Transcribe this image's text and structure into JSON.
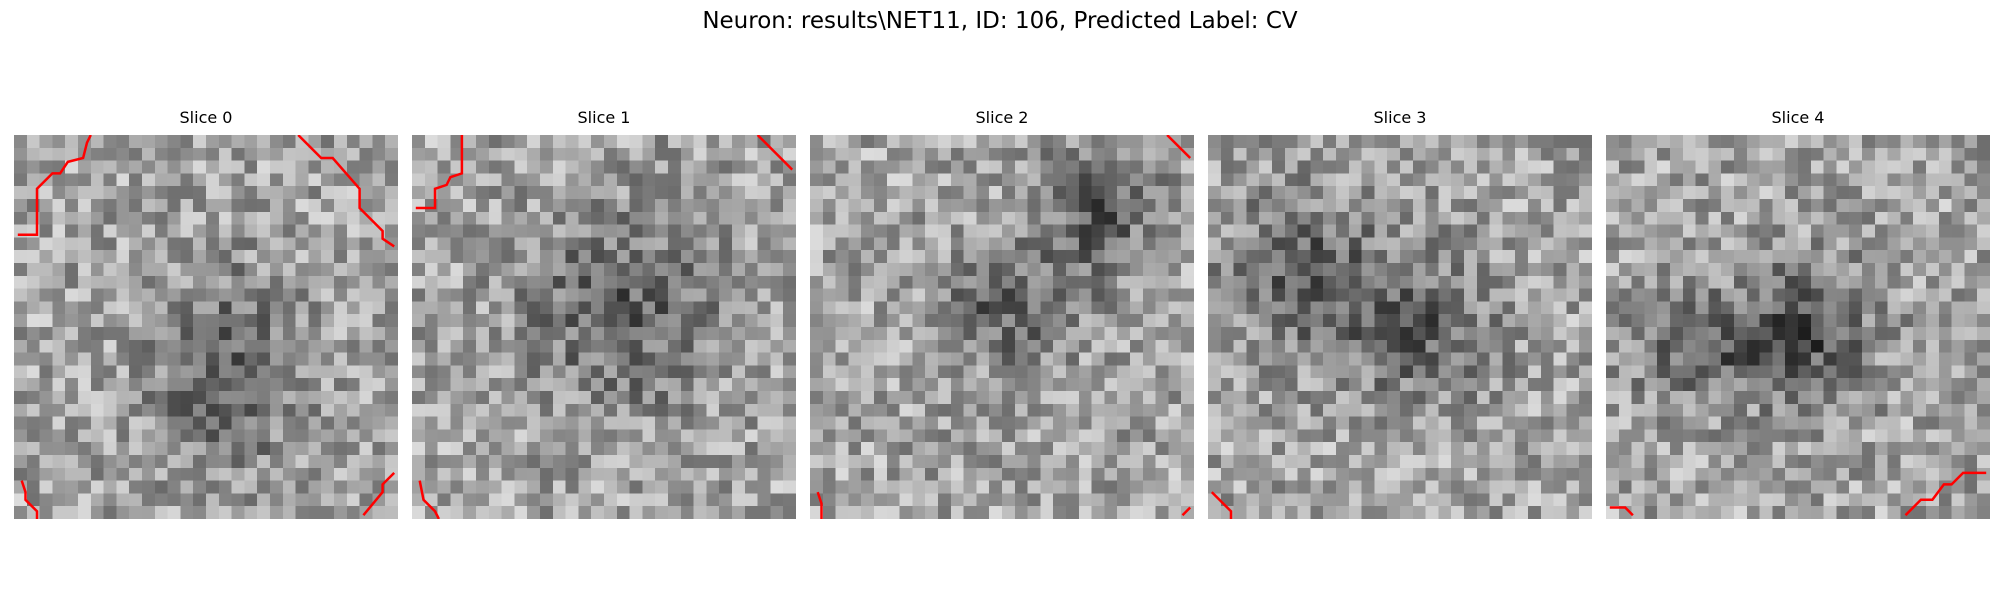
{
  "figure": {
    "title": "Neuron: results\\NET11, ID: 106, Predicted Label: CV",
    "contour_color": "#ff0000"
  },
  "slices": [
    {
      "title": "Slice 0",
      "seed": 17,
      "dark_spots": [
        [
          0.55,
          0.62,
          0.18,
          0.25
        ]
      ],
      "contours": [
        [
          [
            0.01,
            0.26
          ],
          [
            0.06,
            0.26
          ],
          [
            0.06,
            0.14
          ],
          [
            0.1,
            0.1
          ],
          [
            0.12,
            0.1
          ],
          [
            0.14,
            0.07
          ],
          [
            0.18,
            0.06
          ],
          [
            0.19,
            0.02
          ],
          [
            0.2,
            0.0
          ]
        ],
        [
          [
            0.74,
            0.0
          ],
          [
            0.8,
            0.06
          ],
          [
            0.83,
            0.06
          ],
          [
            0.9,
            0.14
          ],
          [
            0.9,
            0.19
          ],
          [
            0.96,
            0.25
          ],
          [
            0.96,
            0.27
          ],
          [
            0.99,
            0.29
          ]
        ],
        [
          [
            0.02,
            0.9
          ],
          [
            0.03,
            0.93
          ],
          [
            0.03,
            0.95
          ],
          [
            0.06,
            0.98
          ],
          [
            0.06,
            1.0
          ]
        ],
        [
          [
            0.91,
            0.99
          ],
          [
            0.96,
            0.93
          ],
          [
            0.96,
            0.91
          ],
          [
            0.99,
            0.88
          ]
        ]
      ]
    },
    {
      "title": "Slice 1",
      "seed": 41,
      "dark_spots": [
        [
          0.55,
          0.45,
          0.25,
          0.25
        ]
      ],
      "contours": [
        [
          [
            0.01,
            0.19
          ],
          [
            0.06,
            0.19
          ],
          [
            0.06,
            0.14
          ],
          [
            0.09,
            0.13
          ],
          [
            0.1,
            0.11
          ],
          [
            0.13,
            0.1
          ],
          [
            0.13,
            0.06
          ],
          [
            0.13,
            0.0
          ]
        ],
        [
          [
            0.9,
            0.0
          ],
          [
            0.97,
            0.07
          ],
          [
            0.99,
            0.09
          ]
        ],
        [
          [
            0.02,
            0.9
          ],
          [
            0.03,
            0.95
          ],
          [
            0.06,
            0.98
          ],
          [
            0.07,
            1.0
          ]
        ]
      ]
    },
    {
      "title": "Slice 2",
      "seed": 73,
      "dark_spots": [
        [
          0.75,
          0.2,
          0.15,
          0.2
        ],
        [
          0.5,
          0.45,
          0.15,
          0.15
        ]
      ],
      "contours": [
        [
          [
            0.93,
            0.0
          ],
          [
            0.99,
            0.06
          ]
        ],
        [
          [
            0.02,
            0.93
          ],
          [
            0.03,
            0.96
          ],
          [
            0.03,
            1.0
          ]
        ],
        [
          [
            0.97,
            0.99
          ],
          [
            0.99,
            0.97
          ]
        ]
      ]
    },
    {
      "title": "Slice 3",
      "seed": 97,
      "dark_spots": [
        [
          0.25,
          0.35,
          0.2,
          0.2
        ],
        [
          0.55,
          0.5,
          0.2,
          0.18
        ]
      ],
      "contours": [
        [
          [
            0.01,
            0.93
          ],
          [
            0.06,
            0.98
          ],
          [
            0.06,
            1.0
          ]
        ]
      ]
    },
    {
      "title": "Slice 4",
      "seed": 131,
      "dark_spots": [
        [
          0.3,
          0.55,
          0.22,
          0.15
        ],
        [
          0.55,
          0.5,
          0.15,
          0.18
        ]
      ],
      "contours": [
        [
          [
            0.78,
            0.99
          ],
          [
            0.82,
            0.95
          ],
          [
            0.85,
            0.95
          ],
          [
            0.88,
            0.91
          ],
          [
            0.9,
            0.91
          ],
          [
            0.93,
            0.88
          ],
          [
            0.96,
            0.88
          ],
          [
            0.99,
            0.88
          ]
        ],
        [
          [
            0.01,
            0.97
          ],
          [
            0.05,
            0.97
          ],
          [
            0.07,
            0.99
          ]
        ]
      ]
    }
  ]
}
